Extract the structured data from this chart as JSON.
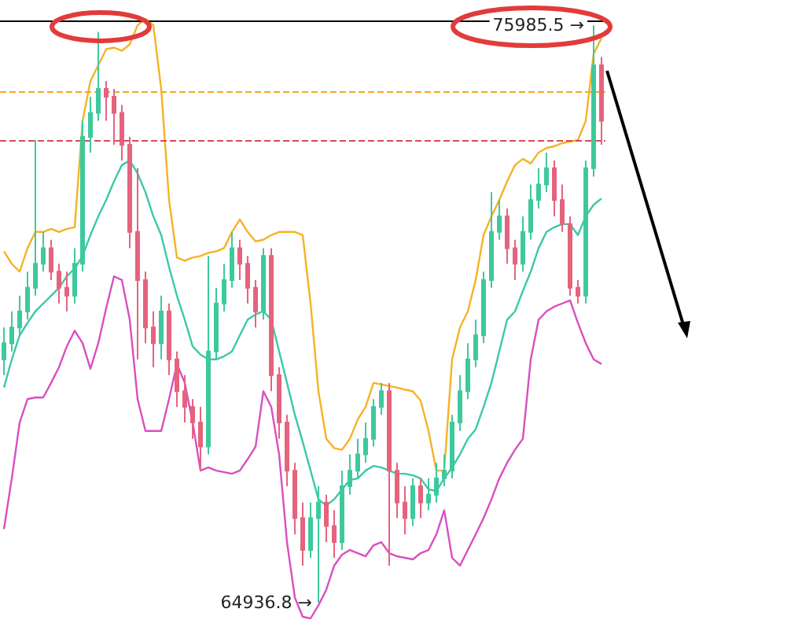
{
  "chart_data": {
    "type": "candlestick",
    "tick_labels": false,
    "categories": [
      null,
      null,
      null,
      null,
      null,
      null,
      null,
      null,
      null,
      null,
      null,
      null,
      null,
      null,
      null,
      null,
      null,
      null,
      null,
      null,
      null,
      null,
      null,
      null,
      null,
      null,
      null,
      null,
      null,
      null,
      null,
      null,
      null,
      null,
      null,
      null,
      null,
      null,
      null,
      null,
      null,
      null,
      null,
      null,
      null,
      null,
      null,
      null,
      null,
      null,
      null,
      null,
      null,
      null,
      null,
      null,
      null,
      null,
      null,
      null,
      null,
      null,
      null,
      null,
      null,
      null,
      null,
      null,
      null,
      null,
      null,
      null,
      null,
      null,
      null,
      null,
      null
    ],
    "series": [
      {
        "type": "candlestick",
        "colors": [
          "#3ec99d",
          "#3ec99d",
          "#3ec99d",
          "#3ec99d",
          "#3ec99d",
          "#3ec99d",
          "#e5637d",
          "#e5637d",
          "#e5637d",
          "#3ec99d",
          "#3ec99d",
          "#3ec99d",
          "#3ec99d",
          "#e5637d",
          "#e5637d",
          "#e5637d",
          "#e5637d",
          "#e5637d",
          "#e5637d",
          "#e5637d",
          "#3ec99d",
          "#e5637d",
          "#e5637d",
          "#e5637d",
          "#e5637d",
          "#e5637d",
          "#3ec99d",
          "#3ec99d",
          "#3ec99d",
          "#3ec99d",
          "#e5637d",
          "#e5637d",
          "#e5637d",
          "#3ec99d",
          "#e5637d",
          "#e5637d",
          "#e5637d",
          "#e5637d",
          "#e5637d",
          "#3ec99d",
          "#3ec99d",
          "#e5637d",
          "#e5637d",
          "#3ec99d",
          "#3ec99d",
          "#3ec99d",
          "#3ec99d",
          "#3ec99d",
          "#3ec99d",
          "#e5637d",
          "#e5637d",
          "#e5637d",
          "#3ec99d",
          "#e5637d",
          "#3ec99d",
          "#3ec99d",
          "#3ec99d",
          "#3ec99d",
          "#3ec99d",
          "#3ec99d",
          "#3ec99d",
          "#3ec99d",
          "#3ec99d",
          "#3ec99d",
          "#e5637d",
          "#e5637d",
          "#3ec99d",
          "#3ec99d",
          "#3ec99d",
          "#3ec99d",
          "#e5637d",
          "#e5637d",
          "#e5637d",
          "#e5637d",
          "#3ec99d",
          "#3ec99d",
          "#e5637d"
        ],
        "ohlc": [
          [
            69590,
            70200,
            69290,
            69900
          ],
          [
            69900,
            70510,
            69740,
            70200
          ],
          [
            70200,
            70810,
            70050,
            70510
          ],
          [
            70510,
            71270,
            70350,
            70960
          ],
          [
            70960,
            73790,
            70810,
            71420
          ],
          [
            71420,
            72030,
            71270,
            71720
          ],
          [
            71720,
            71880,
            71110,
            71270
          ],
          [
            71270,
            71420,
            70660,
            70960
          ],
          [
            70960,
            71270,
            70510,
            70810
          ],
          [
            70810,
            71720,
            70660,
            71420
          ],
          [
            71420,
            74160,
            71270,
            73850
          ],
          [
            73850,
            74620,
            73550,
            74310
          ],
          [
            74310,
            75860,
            74160,
            74770
          ],
          [
            74770,
            74920,
            74160,
            74620
          ],
          [
            74620,
            74770,
            73700,
            74310
          ],
          [
            74310,
            74460,
            73400,
            73700
          ],
          [
            73700,
            73850,
            71720,
            72030
          ],
          [
            72030,
            73250,
            69590,
            71110
          ],
          [
            71110,
            71270,
            69900,
            70200
          ],
          [
            70200,
            70510,
            69440,
            69900
          ],
          [
            69900,
            70810,
            69590,
            70510
          ],
          [
            70510,
            70660,
            69290,
            69590
          ],
          [
            69590,
            69740,
            68680,
            68980
          ],
          [
            68980,
            69290,
            68380,
            68680
          ],
          [
            68680,
            68830,
            68070,
            68380
          ],
          [
            68380,
            68680,
            67460,
            67920
          ],
          [
            67920,
            71570,
            67770,
            69740
          ],
          [
            69740,
            70960,
            69590,
            70660
          ],
          [
            70660,
            71420,
            70510,
            71110
          ],
          [
            71110,
            72030,
            70960,
            71720
          ],
          [
            71720,
            71880,
            71110,
            71420
          ],
          [
            71420,
            71570,
            70660,
            70960
          ],
          [
            70960,
            71110,
            70200,
            70510
          ],
          [
            70510,
            71720,
            70350,
            71570
          ],
          [
            71570,
            71720,
            68980,
            69290
          ],
          [
            69290,
            69440,
            68070,
            68380
          ],
          [
            68380,
            68530,
            67160,
            67460
          ],
          [
            67460,
            67610,
            66240,
            66550
          ],
          [
            66550,
            66850,
            65640,
            65940
          ],
          [
            65940,
            66850,
            65790,
            66550
          ],
          [
            66550,
            67160,
            64936.8,
            66850
          ],
          [
            66850,
            67000,
            66090,
            66400
          ],
          [
            66400,
            66700,
            65790,
            66090
          ],
          [
            66090,
            67460,
            65940,
            67160
          ],
          [
            67160,
            67770,
            67000,
            67460
          ],
          [
            67460,
            68070,
            67310,
            67770
          ],
          [
            67770,
            68380,
            67610,
            68070
          ],
          [
            68070,
            68830,
            67920,
            68680
          ],
          [
            68680,
            69140,
            68530,
            68980
          ],
          [
            68980,
            69140,
            65640,
            67460
          ],
          [
            67460,
            67610,
            66550,
            66850
          ],
          [
            66850,
            67160,
            66240,
            66550
          ],
          [
            66550,
            67310,
            66400,
            67160
          ],
          [
            67160,
            67310,
            66550,
            66850
          ],
          [
            66850,
            67310,
            66700,
            67000
          ],
          [
            67000,
            67610,
            66850,
            67310
          ],
          [
            67310,
            67770,
            67160,
            67460
          ],
          [
            67460,
            68530,
            67310,
            68380
          ],
          [
            68380,
            69290,
            68220,
            68980
          ],
          [
            68980,
            69900,
            68830,
            69590
          ],
          [
            69590,
            70350,
            69440,
            70050
          ],
          [
            70050,
            71270,
            69900,
            71110
          ],
          [
            71110,
            72790,
            70960,
            72030
          ],
          [
            72030,
            72640,
            71880,
            72330
          ],
          [
            72330,
            72480,
            71420,
            71720
          ],
          [
            71720,
            71880,
            71110,
            71420
          ],
          [
            71420,
            72330,
            71270,
            72030
          ],
          [
            72030,
            72940,
            71880,
            72640
          ],
          [
            72640,
            73250,
            72480,
            72940
          ],
          [
            72940,
            73550,
            72790,
            73250
          ],
          [
            73250,
            73400,
            72330,
            72640
          ],
          [
            72640,
            72940,
            72030,
            72180
          ],
          [
            72180,
            72330,
            70810,
            70960
          ],
          [
            70960,
            71110,
            70660,
            70810
          ],
          [
            70810,
            73400,
            70660,
            73250
          ],
          [
            73250,
            75985.5,
            73090,
            75220
          ],
          [
            75220,
            75380,
            73700,
            74160
          ]
        ]
      },
      {
        "type": "line",
        "color": "#f5b324",
        "values": [
          71660,
          71420,
          71270,
          71720,
          72030,
          72030,
          72090,
          72030,
          72090,
          72120,
          74160,
          74920,
          75220,
          75530,
          75560,
          75500,
          75620,
          75990,
          76110,
          75990,
          74770,
          72640,
          71540,
          71480,
          71540,
          71570,
          71630,
          71660,
          71720,
          72030,
          72270,
          72030,
          71850,
          71880,
          71970,
          72030,
          72030,
          72030,
          71970,
          70660,
          68980,
          68070,
          67890,
          67860,
          68070,
          68440,
          68680,
          69140,
          69110,
          69080,
          69050,
          69010,
          68980,
          68800,
          68220,
          67460,
          67460,
          69590,
          70200,
          70510,
          71110,
          71970,
          72330,
          72640,
          73000,
          73310,
          73430,
          73340,
          73550,
          73640,
          73670,
          73730,
          73760,
          73790,
          74160,
          75440,
          75740
        ]
      },
      {
        "type": "line",
        "color": "#3cc8a8",
        "values": [
          69050,
          69590,
          70050,
          70290,
          70510,
          70660,
          70810,
          70960,
          71180,
          71330,
          71570,
          71970,
          72330,
          72640,
          73000,
          73310,
          73400,
          73150,
          72790,
          72330,
          71970,
          71360,
          70810,
          70350,
          69840,
          69680,
          69590,
          69590,
          69650,
          69740,
          70050,
          70350,
          70450,
          70510,
          70350,
          69740,
          69140,
          68530,
          68010,
          67460,
          66910,
          66790,
          66910,
          67100,
          67280,
          67310,
          67460,
          67550,
          67520,
          67460,
          67400,
          67400,
          67370,
          67310,
          67100,
          67070,
          67310,
          67520,
          67770,
          68070,
          68250,
          68680,
          69140,
          69740,
          70350,
          70510,
          70900,
          71270,
          71720,
          72030,
          72120,
          72180,
          72180,
          71970,
          72330,
          72550,
          72670
        ]
      },
      {
        "type": "line",
        "color": "#d94fc0",
        "values": [
          66340,
          67310,
          68380,
          68830,
          68860,
          68860,
          69140,
          69440,
          69840,
          70140,
          69900,
          69410,
          69900,
          70570,
          71180,
          71110,
          70350,
          68830,
          68220,
          68220,
          68220,
          68830,
          69500,
          69140,
          68380,
          67460,
          67520,
          67460,
          67430,
          67400,
          67460,
          67680,
          67920,
          68980,
          68680,
          67770,
          66090,
          65030,
          64660,
          64630,
          64880,
          65180,
          65640,
          65850,
          65940,
          65880,
          65820,
          66030,
          66090,
          65880,
          65820,
          65790,
          65760,
          65880,
          65940,
          66240,
          66700,
          65790,
          65640,
          65940,
          66240,
          66550,
          66910,
          67310,
          67610,
          67860,
          68070,
          69590,
          70350,
          70510,
          70600,
          70660,
          70720,
          70290,
          69900,
          69590,
          69500
        ]
      }
    ],
    "ref_lines": [
      {
        "axis": "y",
        "value": 76080,
        "color": "#000000",
        "line_style": "solid"
      },
      {
        "axis": "y",
        "value": 74710,
        "color": "#f5a623",
        "line_style": "dashed"
      },
      {
        "axis": "y",
        "value": 73790,
        "color": "#d9485f",
        "line_style": "dashed"
      }
    ],
    "annotations": [
      {
        "text": "75985.5 →",
        "y": 75985.5
      },
      "64936.8 →"
    ]
  }
}
